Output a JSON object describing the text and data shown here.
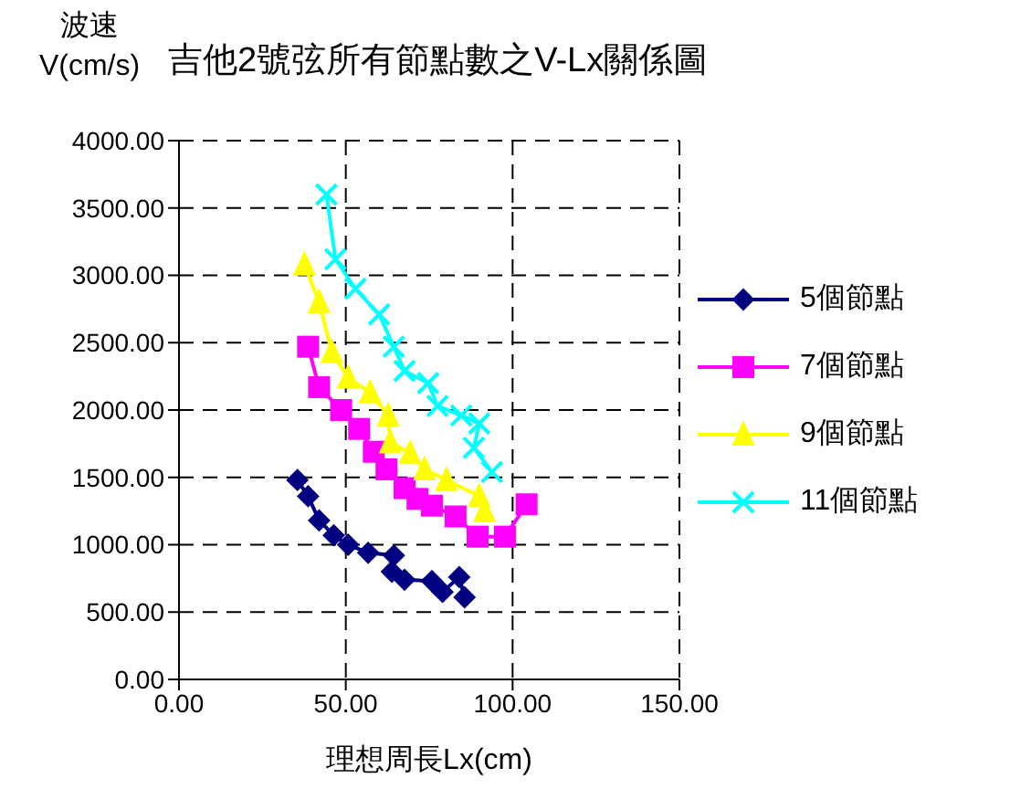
{
  "chart_data": {
    "type": "line",
    "title": "吉他2號弦所有節點數之V-Lx關係圖",
    "ylabel": "波速\nV(cm/s)",
    "xlabel": "理想周長Lx(cm)",
    "xlim": [
      0,
      150
    ],
    "xticks": [
      {
        "value": 0,
        "label": "0.00"
      },
      {
        "value": 50,
        "label": "50.00"
      },
      {
        "value": 100,
        "label": "100.00"
      },
      {
        "value": 150,
        "label": "150.00"
      }
    ],
    "ylim": [
      0,
      4000
    ],
    "yticks": [
      {
        "value": 0,
        "label": "0.00"
      },
      {
        "value": 500,
        "label": "500.00"
      },
      {
        "value": 1000,
        "label": "1000.00"
      },
      {
        "value": 1500,
        "label": "1500.00"
      },
      {
        "value": 2000,
        "label": "2000.00"
      },
      {
        "value": 2500,
        "label": "2500.00"
      },
      {
        "value": 3000,
        "label": "3000.00"
      },
      {
        "value": 3500,
        "label": "3500.00"
      },
      {
        "value": 4000,
        "label": "4000.00"
      }
    ],
    "grid": true,
    "legend": "right",
    "line_style": "solid",
    "series": [
      {
        "name": "5個節點",
        "color": "#000080",
        "marker": "diamond",
        "x": [
          35.5,
          38.7,
          42,
          46.4,
          50.7,
          56.7,
          64.4,
          63.8,
          67.6,
          75.8,
          79,
          84,
          85.6
        ],
        "values": [
          1480,
          1360,
          1180,
          1070,
          1000,
          940,
          920,
          800,
          740,
          730,
          650,
          760,
          610
        ]
      },
      {
        "name": "7個節點",
        "color": "#ff00ff",
        "marker": "square",
        "x": [
          38.7,
          42,
          48.6,
          54,
          58.4,
          62.2,
          67.6,
          71.5,
          75.8,
          82.9,
          89.5,
          97.7,
          104.2
        ],
        "values": [
          2470,
          2170,
          2000,
          1860,
          1690,
          1560,
          1420,
          1340,
          1290,
          1210,
          1060,
          1060,
          1300
        ]
      },
      {
        "name": "9個節點",
        "color": "#ffff00",
        "marker": "triangle",
        "x": [
          37.6,
          42,
          45.8,
          50.7,
          57.3,
          62.7,
          63.3,
          69.3,
          73.6,
          80.2,
          90,
          91.6
        ],
        "values": [
          3080,
          2800,
          2430,
          2240,
          2130,
          1960,
          1760,
          1680,
          1560,
          1480,
          1360,
          1250
        ]
      },
      {
        "name": "11個節點",
        "color": "#00ffff",
        "marker": "cross",
        "x": [
          44.2,
          46.9,
          52.9,
          60,
          64.4,
          67.6,
          74.7,
          77.5,
          84.6,
          90,
          88.4,
          93.8
        ],
        "values": [
          3600,
          3120,
          2900,
          2710,
          2470,
          2290,
          2200,
          2030,
          1960,
          1900,
          1720,
          1540
        ]
      }
    ]
  }
}
